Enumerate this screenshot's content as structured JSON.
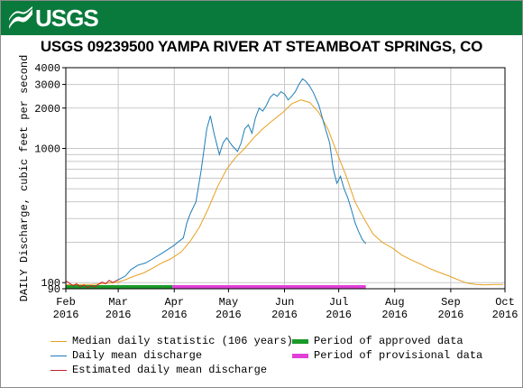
{
  "header": {
    "logo_text": "USGS",
    "title": "USGS 09239500 YAMPA RIVER AT STEAMBOAT SPRINGS, CO"
  },
  "colors": {
    "banner": "#0a7a3c",
    "median": "#e8a020",
    "daily": "#1f7db8",
    "estimated": "#c0202a",
    "approved": "#1a9a2a",
    "provisional": "#e040d8"
  },
  "legend": {
    "median": "Median daily statistic (106 years)",
    "daily": "Daily mean discharge",
    "estimated": "Estimated daily mean discharge",
    "approved": "Period of approved data",
    "provisional": "Period of provisional data"
  },
  "chart_data": {
    "type": "line",
    "title": "USGS 09239500 YAMPA RIVER AT STEAMBOAT SPRINGS, CO",
    "ylabel": "DAILY Discharge, cubic feet per second",
    "xlabel": "",
    "y_scale": "log",
    "ylim": [
      90,
      4000
    ],
    "xlim": [
      "2016-02-01",
      "2016-10-01"
    ],
    "grid": true,
    "y_ticks": [
      {
        "value": 90,
        "label": "90"
      },
      {
        "value": 100,
        "label": "100"
      },
      {
        "value": 1000,
        "label": "1000"
      },
      {
        "value": 2000,
        "label": "2000"
      },
      {
        "value": 3000,
        "label": "3000"
      },
      {
        "value": 4000,
        "label": "4000"
      }
    ],
    "x_ticks": [
      {
        "date": "2016-02-01",
        "month": "Feb",
        "year": "2016"
      },
      {
        "date": "2016-03-01",
        "month": "Mar",
        "year": "2016"
      },
      {
        "date": "2016-04-01",
        "month": "Apr",
        "year": "2016"
      },
      {
        "date": "2016-05-01",
        "month": "May",
        "year": "2016"
      },
      {
        "date": "2016-06-01",
        "month": "Jun",
        "year": "2016"
      },
      {
        "date": "2016-07-01",
        "month": "Jul",
        "year": "2016"
      },
      {
        "date": "2016-08-01",
        "month": "Aug",
        "year": "2016"
      },
      {
        "date": "2016-09-01",
        "month": "Sep",
        "year": "2016"
      },
      {
        "date": "2016-10-01",
        "month": "Oct",
        "year": "2016"
      }
    ],
    "series": [
      {
        "name": "Median daily statistic (106 years)",
        "color": "#e8a020",
        "points": [
          [
            "2016-02-01",
            97
          ],
          [
            "2016-02-05",
            96
          ],
          [
            "2016-02-10",
            97
          ],
          [
            "2016-02-15",
            97
          ],
          [
            "2016-02-20",
            98
          ],
          [
            "2016-02-25",
            99
          ],
          [
            "2016-03-01",
            101
          ],
          [
            "2016-03-05",
            105
          ],
          [
            "2016-03-10",
            112
          ],
          [
            "2016-03-15",
            118
          ],
          [
            "2016-03-20",
            128
          ],
          [
            "2016-03-25",
            140
          ],
          [
            "2016-03-30",
            150
          ],
          [
            "2016-04-05",
            170
          ],
          [
            "2016-04-10",
            205
          ],
          [
            "2016-04-15",
            260
          ],
          [
            "2016-04-20",
            360
          ],
          [
            "2016-04-25",
            520
          ],
          [
            "2016-04-30",
            700
          ],
          [
            "2016-05-05",
            860
          ],
          [
            "2016-05-10",
            1000
          ],
          [
            "2016-05-15",
            1200
          ],
          [
            "2016-05-20",
            1400
          ],
          [
            "2016-05-25",
            1600
          ],
          [
            "2016-05-31",
            1850
          ],
          [
            "2016-06-05",
            2150
          ],
          [
            "2016-06-10",
            2300
          ],
          [
            "2016-06-15",
            2200
          ],
          [
            "2016-06-20",
            1850
          ],
          [
            "2016-06-25",
            1400
          ],
          [
            "2016-06-30",
            930
          ],
          [
            "2016-07-05",
            630
          ],
          [
            "2016-07-10",
            400
          ],
          [
            "2016-07-15",
            300
          ],
          [
            "2016-07-20",
            230
          ],
          [
            "2016-07-25",
            200
          ],
          [
            "2016-07-31",
            180
          ],
          [
            "2016-08-05",
            160
          ],
          [
            "2016-08-10",
            148
          ],
          [
            "2016-08-15",
            138
          ],
          [
            "2016-08-20",
            128
          ],
          [
            "2016-08-25",
            120
          ],
          [
            "2016-08-31",
            112
          ],
          [
            "2016-09-05",
            105
          ],
          [
            "2016-09-10",
            99
          ],
          [
            "2016-09-15",
            97
          ],
          [
            "2016-09-20",
            96
          ],
          [
            "2016-09-25",
            97
          ],
          [
            "2016-09-30",
            97
          ]
        ]
      },
      {
        "name": "Daily mean discharge",
        "color": "#1f7db8",
        "points": [
          [
            "2016-03-01",
            105
          ],
          [
            "2016-03-05",
            112
          ],
          [
            "2016-03-08",
            125
          ],
          [
            "2016-03-12",
            135
          ],
          [
            "2016-03-16",
            140
          ],
          [
            "2016-03-20",
            150
          ],
          [
            "2016-03-25",
            165
          ],
          [
            "2016-03-28",
            175
          ],
          [
            "2016-04-01",
            190
          ],
          [
            "2016-04-04",
            205
          ],
          [
            "2016-04-06",
            215
          ],
          [
            "2016-04-08",
            280
          ],
          [
            "2016-04-10",
            330
          ],
          [
            "2016-04-13",
            400
          ],
          [
            "2016-04-16",
            700
          ],
          [
            "2016-04-19",
            1400
          ],
          [
            "2016-04-21",
            1750
          ],
          [
            "2016-04-23",
            1300
          ],
          [
            "2016-04-26",
            900
          ],
          [
            "2016-04-28",
            1100
          ],
          [
            "2016-04-30",
            1200
          ],
          [
            "2016-05-03",
            1050
          ],
          [
            "2016-05-06",
            950
          ],
          [
            "2016-05-08",
            1100
          ],
          [
            "2016-05-10",
            1400
          ],
          [
            "2016-05-12",
            1500
          ],
          [
            "2016-05-14",
            1300
          ],
          [
            "2016-05-16",
            1700
          ],
          [
            "2016-05-18",
            2000
          ],
          [
            "2016-05-20",
            1900
          ],
          [
            "2016-05-22",
            2100
          ],
          [
            "2016-05-24",
            2400
          ],
          [
            "2016-05-26",
            2550
          ],
          [
            "2016-05-28",
            2450
          ],
          [
            "2016-05-30",
            2650
          ],
          [
            "2016-06-01",
            2550
          ],
          [
            "2016-06-03",
            2300
          ],
          [
            "2016-06-05",
            2450
          ],
          [
            "2016-06-07",
            2650
          ],
          [
            "2016-06-09",
            3000
          ],
          [
            "2016-06-11",
            3300
          ],
          [
            "2016-06-13",
            3150
          ],
          [
            "2016-06-15",
            2900
          ],
          [
            "2016-06-17",
            2600
          ],
          [
            "2016-06-20",
            2100
          ],
          [
            "2016-06-23",
            1500
          ],
          [
            "2016-06-26",
            1100
          ],
          [
            "2016-06-28",
            700
          ],
          [
            "2016-06-30",
            550
          ],
          [
            "2016-07-02",
            620
          ],
          [
            "2016-07-04",
            500
          ],
          [
            "2016-07-06",
            430
          ],
          [
            "2016-07-08",
            350
          ],
          [
            "2016-07-10",
            280
          ],
          [
            "2016-07-12",
            240
          ],
          [
            "2016-07-14",
            210
          ],
          [
            "2016-07-16",
            195
          ]
        ]
      },
      {
        "name": "Estimated daily mean discharge",
        "color": "#c0202a",
        "points": [
          [
            "2016-02-01",
            103
          ],
          [
            "2016-02-03",
            99
          ],
          [
            "2016-02-05",
            95
          ],
          [
            "2016-02-07",
            98
          ],
          [
            "2016-02-09",
            93
          ],
          [
            "2016-02-11",
            96
          ],
          [
            "2016-02-13",
            92
          ],
          [
            "2016-02-15",
            95
          ],
          [
            "2016-02-17",
            93
          ],
          [
            "2016-02-19",
            97
          ],
          [
            "2016-02-21",
            101
          ],
          [
            "2016-02-23",
            98
          ],
          [
            "2016-02-25",
            104
          ],
          [
            "2016-02-27",
            100
          ],
          [
            "2016-03-01",
            105
          ]
        ]
      }
    ],
    "periods": [
      {
        "name": "Period of approved data",
        "start": "2016-02-01",
        "end": "2016-03-31",
        "color": "#1a9a2a"
      },
      {
        "name": "Period of provisional data",
        "start": "2016-03-31",
        "end": "2016-07-16",
        "color": "#e040d8"
      }
    ]
  }
}
